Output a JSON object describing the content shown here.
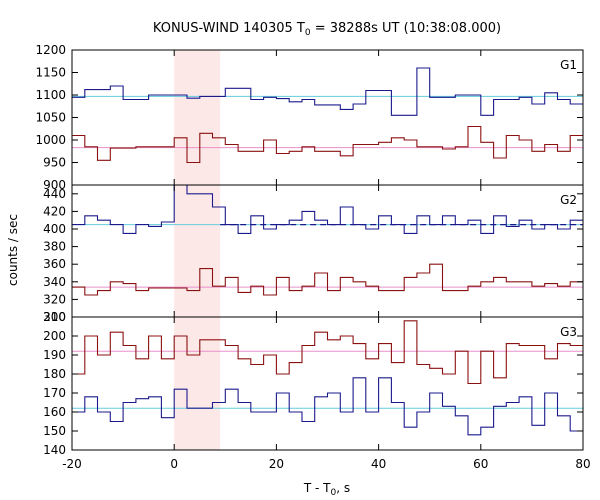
{
  "chart_data": {
    "type": "line",
    "title_prefix": "KONUS-WIND 140305 T",
    "title_sub": "0",
    "title_suffix": " = 38288s UT (10:38:08.000)",
    "xlabel_prefix": "T - T",
    "xlabel_sub": "0",
    "xlabel_suffix": ", s",
    "ylabel": "counts / sec",
    "xlim": [
      -20,
      80
    ],
    "x_ticks": [
      "-20",
      "0",
      "20",
      "40",
      "60",
      "80"
    ],
    "x_tick_values": [
      -20,
      0,
      20,
      40,
      60,
      80
    ],
    "highlight": {
      "x0": 0,
      "x1": 9,
      "color": "#fde8e8"
    },
    "bin_edges": [
      -20,
      -17.5,
      -15,
      -12.5,
      -10,
      -7.5,
      -5,
      -2.5,
      0,
      2.5,
      5,
      7.5,
      10,
      12.5,
      15,
      17.5,
      20,
      22.5,
      25,
      27.5,
      30,
      32.5,
      35,
      37.5,
      40,
      42.5,
      45,
      47.5,
      50,
      52.5,
      55,
      57.5,
      60,
      62.5,
      65,
      67.5,
      70,
      72.5,
      75,
      77.5,
      80
    ],
    "colors": {
      "blue": "#1a1a8c",
      "red": "#8b1010",
      "cyan": "#66ccdd",
      "pink": "#e890cc"
    },
    "panels": [
      {
        "label": "G1",
        "ylim": [
          900,
          1200
        ],
        "y_ticks": [
          900,
          950,
          1000,
          1050,
          1100,
          1150,
          1200
        ],
        "series": [
          {
            "color": "blue",
            "bkg": 1097,
            "bkg_color": "cyan",
            "values": [
              1095,
              1112,
              1112,
              1120,
              1090,
              1090,
              1100,
              1100,
              1100,
              1093,
              1097,
              1097,
              1115,
              1115,
              1090,
              1095,
              1092,
              1085,
              1090,
              1078,
              1078,
              1068,
              1080,
              1110,
              1110,
              1055,
              1055,
              1160,
              1095,
              1095,
              1100,
              1100,
              1055,
              1090,
              1090,
              1095,
              1080,
              1105,
              1090,
              1080
            ]
          },
          {
            "color": "red",
            "bkg": 983,
            "bkg_color": "pink",
            "values": [
              1010,
              985,
              955,
              982,
              982,
              985,
              985,
              985,
              1005,
              950,
              1015,
              1005,
              990,
              975,
              975,
              1000,
              970,
              975,
              985,
              975,
              975,
              965,
              990,
              990,
              995,
              1005,
              1000,
              985,
              985,
              980,
              985,
              1030,
              995,
              960,
              1010,
              1000,
              975,
              990,
              975,
              1010
            ]
          }
        ]
      },
      {
        "label": "G2",
        "ylim": [
          300,
          450
        ],
        "y_ticks": [
          300,
          320,
          340,
          360,
          380,
          400,
          420,
          440
        ],
        "series": [
          {
            "color": "blue",
            "bkg": 405,
            "bkg_color": "cyan",
            "fit_dashed": true,
            "values": [
              405,
              415,
              410,
              405,
              395,
              405,
              403,
              408,
              450,
              440,
              440,
              425,
              405,
              395,
              415,
              400,
              405,
              410,
              420,
              410,
              405,
              425,
              405,
              400,
              415,
              405,
              395,
              415,
              405,
              415,
              405,
              410,
              395,
              415,
              403,
              410,
              400,
              405,
              400,
              410
            ]
          },
          {
            "color": "red",
            "bkg": 334,
            "bkg_color": "pink",
            "values": [
              334,
              325,
              330,
              340,
              338,
              330,
              333,
              333,
              333,
              330,
              355,
              335,
              345,
              328,
              335,
              325,
              345,
              330,
              335,
              350,
              330,
              345,
              340,
              335,
              330,
              330,
              345,
              350,
              360,
              330,
              330,
              335,
              340,
              345,
              340,
              340,
              335,
              338,
              335,
              340
            ]
          }
        ]
      },
      {
        "label": "G3",
        "ylim": [
          140,
          210
        ],
        "y_ticks": [
          140,
          150,
          160,
          170,
          180,
          190,
          200,
          210
        ],
        "series": [
          {
            "color": "red",
            "bkg": 192,
            "bkg_color": "pink",
            "values": [
              180,
              200,
              190,
              202,
              195,
              188,
              200,
              188,
              200,
              190,
              198,
              198,
              195,
              188,
              185,
              190,
              180,
              186,
              195,
              202,
              198,
              200,
              196,
              188,
              196,
              186,
              208,
              185,
              183,
              180,
              192,
              175,
              192,
              178,
              196,
              195,
              195,
              188,
              196,
              195
            ]
          },
          {
            "color": "blue",
            "bkg": 162,
            "bkg_color": "cyan",
            "values": [
              160,
              168,
              160,
              155,
              165,
              167,
              168,
              157,
              172,
              162,
              162,
              165,
              172,
              165,
              160,
              160,
              170,
              160,
              155,
              168,
              170,
              160,
              178,
              160,
              178,
              165,
              152,
              160,
              170,
              163,
              158,
              148,
              152,
              163,
              165,
              168,
              153,
              170,
              158,
              150
            ]
          }
        ]
      }
    ]
  }
}
